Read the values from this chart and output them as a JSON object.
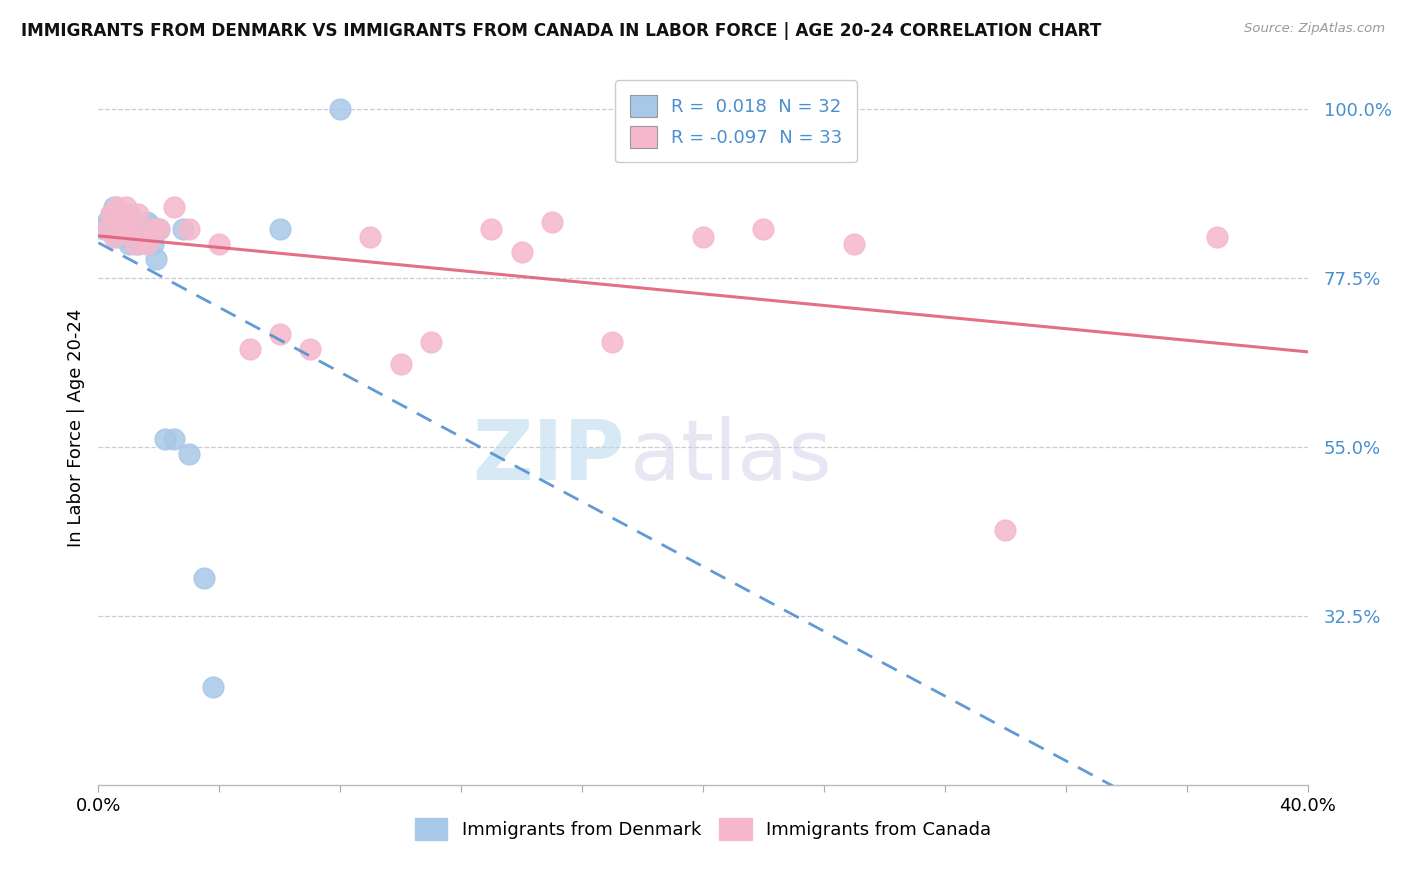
{
  "title": "IMMIGRANTS FROM DENMARK VS IMMIGRANTS FROM CANADA IN LABOR FORCE | AGE 20-24 CORRELATION CHART",
  "source": "Source: ZipAtlas.com",
  "ylabel": "In Labor Force | Age 20-24",
  "ytick_labels": [
    "100.0%",
    "77.5%",
    "55.0%",
    "32.5%"
  ],
  "ytick_values": [
    1.0,
    0.775,
    0.55,
    0.325
  ],
  "xlim": [
    0.0,
    0.4
  ],
  "ylim": [
    0.1,
    1.05
  ],
  "denmark_R": 0.018,
  "denmark_N": 32,
  "canada_R": -0.097,
  "canada_N": 33,
  "denmark_color": "#a8c8e8",
  "canada_color": "#f5b8cc",
  "trend_denmark_color": "#5090d0",
  "trend_canada_color": "#e0607a",
  "watermark_zip": "ZIP",
  "watermark_atlas": "atlas",
  "denmark_x": [
    0.002,
    0.003,
    0.004,
    0.004,
    0.005,
    0.005,
    0.005,
    0.006,
    0.007,
    0.007,
    0.008,
    0.008,
    0.009,
    0.01,
    0.01,
    0.011,
    0.012,
    0.013,
    0.015,
    0.016,
    0.017,
    0.018,
    0.019,
    0.02,
    0.022,
    0.025,
    0.028,
    0.03,
    0.035,
    0.038,
    0.06,
    0.08
  ],
  "denmark_y": [
    0.84,
    0.85,
    0.86,
    0.84,
    0.87,
    0.855,
    0.84,
    0.83,
    0.86,
    0.84,
    0.845,
    0.83,
    0.84,
    0.86,
    0.82,
    0.84,
    0.83,
    0.82,
    0.84,
    0.85,
    0.845,
    0.82,
    0.8,
    0.84,
    0.56,
    0.56,
    0.84,
    0.54,
    0.375,
    0.23,
    0.84,
    1.0
  ],
  "canada_x": [
    0.003,
    0.004,
    0.005,
    0.006,
    0.007,
    0.008,
    0.009,
    0.01,
    0.011,
    0.012,
    0.013,
    0.015,
    0.016,
    0.018,
    0.02,
    0.025,
    0.03,
    0.04,
    0.05,
    0.06,
    0.07,
    0.09,
    0.1,
    0.11,
    0.13,
    0.14,
    0.15,
    0.17,
    0.2,
    0.22,
    0.25,
    0.3,
    0.37
  ],
  "canada_y": [
    0.84,
    0.86,
    0.83,
    0.87,
    0.86,
    0.84,
    0.87,
    0.855,
    0.84,
    0.82,
    0.86,
    0.83,
    0.82,
    0.84,
    0.84,
    0.87,
    0.84,
    0.82,
    0.68,
    0.7,
    0.68,
    0.83,
    0.66,
    0.69,
    0.84,
    0.81,
    0.85,
    0.69,
    0.83,
    0.84,
    0.82,
    0.44,
    0.83
  ]
}
